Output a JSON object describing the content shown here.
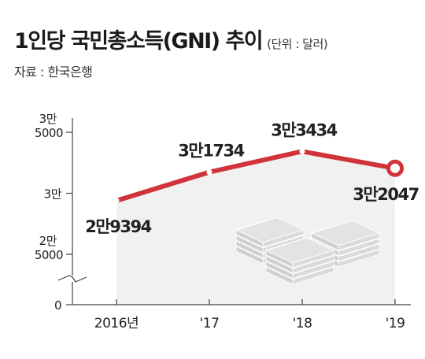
{
  "header": {
    "title": "1인당 국민총소득(GNI) 추이",
    "unit_note": "(단위 : 달러)",
    "source": "자료 : 한국은행"
  },
  "colors": {
    "line": "#d1333a",
    "area": "#f1f1f1",
    "axis": "#444444",
    "bills_top": "#e3e3e3",
    "bills_side": "#d0d0d0"
  },
  "icons": [
    "stacked-money-bundles-icon"
  ],
  "chart_data": {
    "type": "line",
    "title": "1인당 국민총소득(GNI) 추이",
    "x": [
      "2016년",
      "'17",
      "'18",
      "'19"
    ],
    "values": [
      29394,
      31734,
      33434,
      32047
    ],
    "data_labels": [
      "2만9394",
      "3만1734",
      "3만3434",
      "3만2047"
    ],
    "ylim": [
      25000,
      35000
    ],
    "yticks": [
      {
        "value": 35000,
        "line1": "3만",
        "line2": "5000"
      },
      {
        "value": 30000,
        "line1": "3만",
        "line2": ""
      },
      {
        "value": 25000,
        "line1": "2만",
        "line2": "5000"
      },
      {
        "value": 0,
        "line1": "0",
        "line2": ""
      }
    ],
    "axis_break": true,
    "grid": false,
    "legend": "none"
  }
}
